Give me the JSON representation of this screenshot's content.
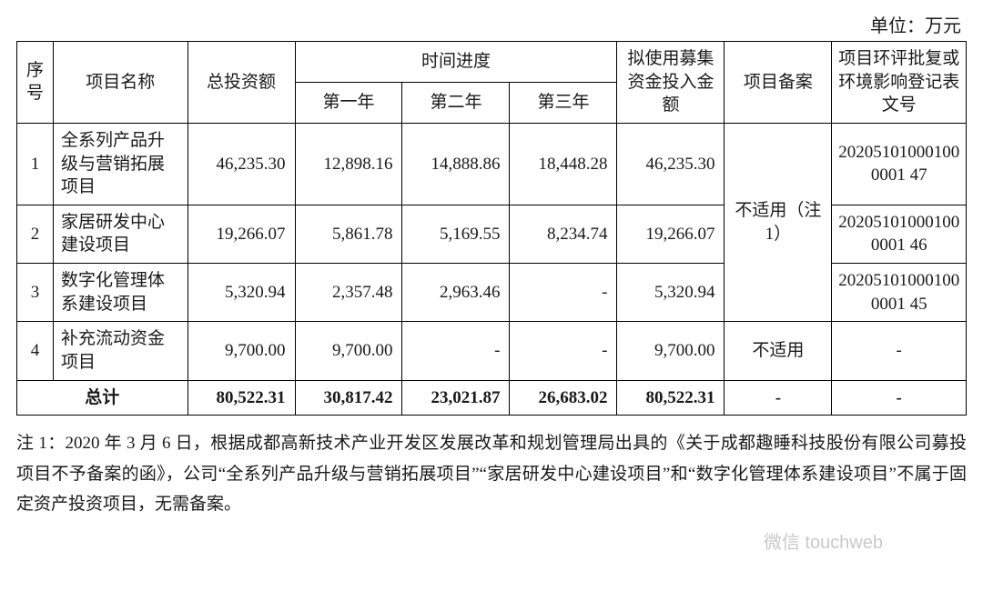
{
  "unit_label": "单位：万元",
  "headers": {
    "seq": "序号",
    "name": "项目名称",
    "total_invest": "总投资额",
    "time_schedule": "时间进度",
    "year1": "第一年",
    "year2": "第二年",
    "year3": "第三年",
    "use_raised": "拟使用募集资金投入金额",
    "filing": "项目备案",
    "eia_doc": "项目环评批复或环境影响登记表文号"
  },
  "rows": [
    {
      "seq": "1",
      "name": "全系列产品升级与营销拓展项目",
      "total_invest": "46,235.30",
      "y1": "12,898.16",
      "y2": "14,888.86",
      "y3": "18,448.28",
      "use_raised": "46,235.30",
      "doc": "202051010001000001\n47"
    },
    {
      "seq": "2",
      "name": "家居研发中心建设项目",
      "total_invest": "19,266.07",
      "y1": "5,861.78",
      "y2": "5,169.55",
      "y3": "8,234.74",
      "use_raised": "19,266.07",
      "doc": "202051010001000001\n46"
    },
    {
      "seq": "3",
      "name": "数字化管理体系建设项目",
      "total_invest": "5,320.94",
      "y1": "2,357.48",
      "y2": "2,963.46",
      "y3": "-",
      "use_raised": "5,320.94",
      "doc": "202051010001000001\n45"
    },
    {
      "seq": "4",
      "name": "补充流动资金项目",
      "total_invest": "9,700.00",
      "y1": "9,700.00",
      "y2": "-",
      "y3": "-",
      "use_raised": "9,700.00",
      "filing": "不适用",
      "doc": "-"
    }
  ],
  "filing_merged": "不适用（注 1）",
  "totals": {
    "label": "总计",
    "total_invest": "80,522.31",
    "y1": "30,817.42",
    "y2": "23,021.87",
    "y3": "26,683.02",
    "use_raised": "80,522.31",
    "filing": "-",
    "doc": "-"
  },
  "footnote": "注 1：2020 年 3 月 6 日，根据成都高新技术产业开发区发展改革和规划管理局出具的《关于成都趣睡科技股份有限公司募投项目不予备案的函》，公司“全系列产品升级与营销拓展项目”“家居研发中心建设项目”和“数字化管理体系建设项目”不属于固定资产投资项目，无需备案。",
  "watermark": "微信 touchweb"
}
